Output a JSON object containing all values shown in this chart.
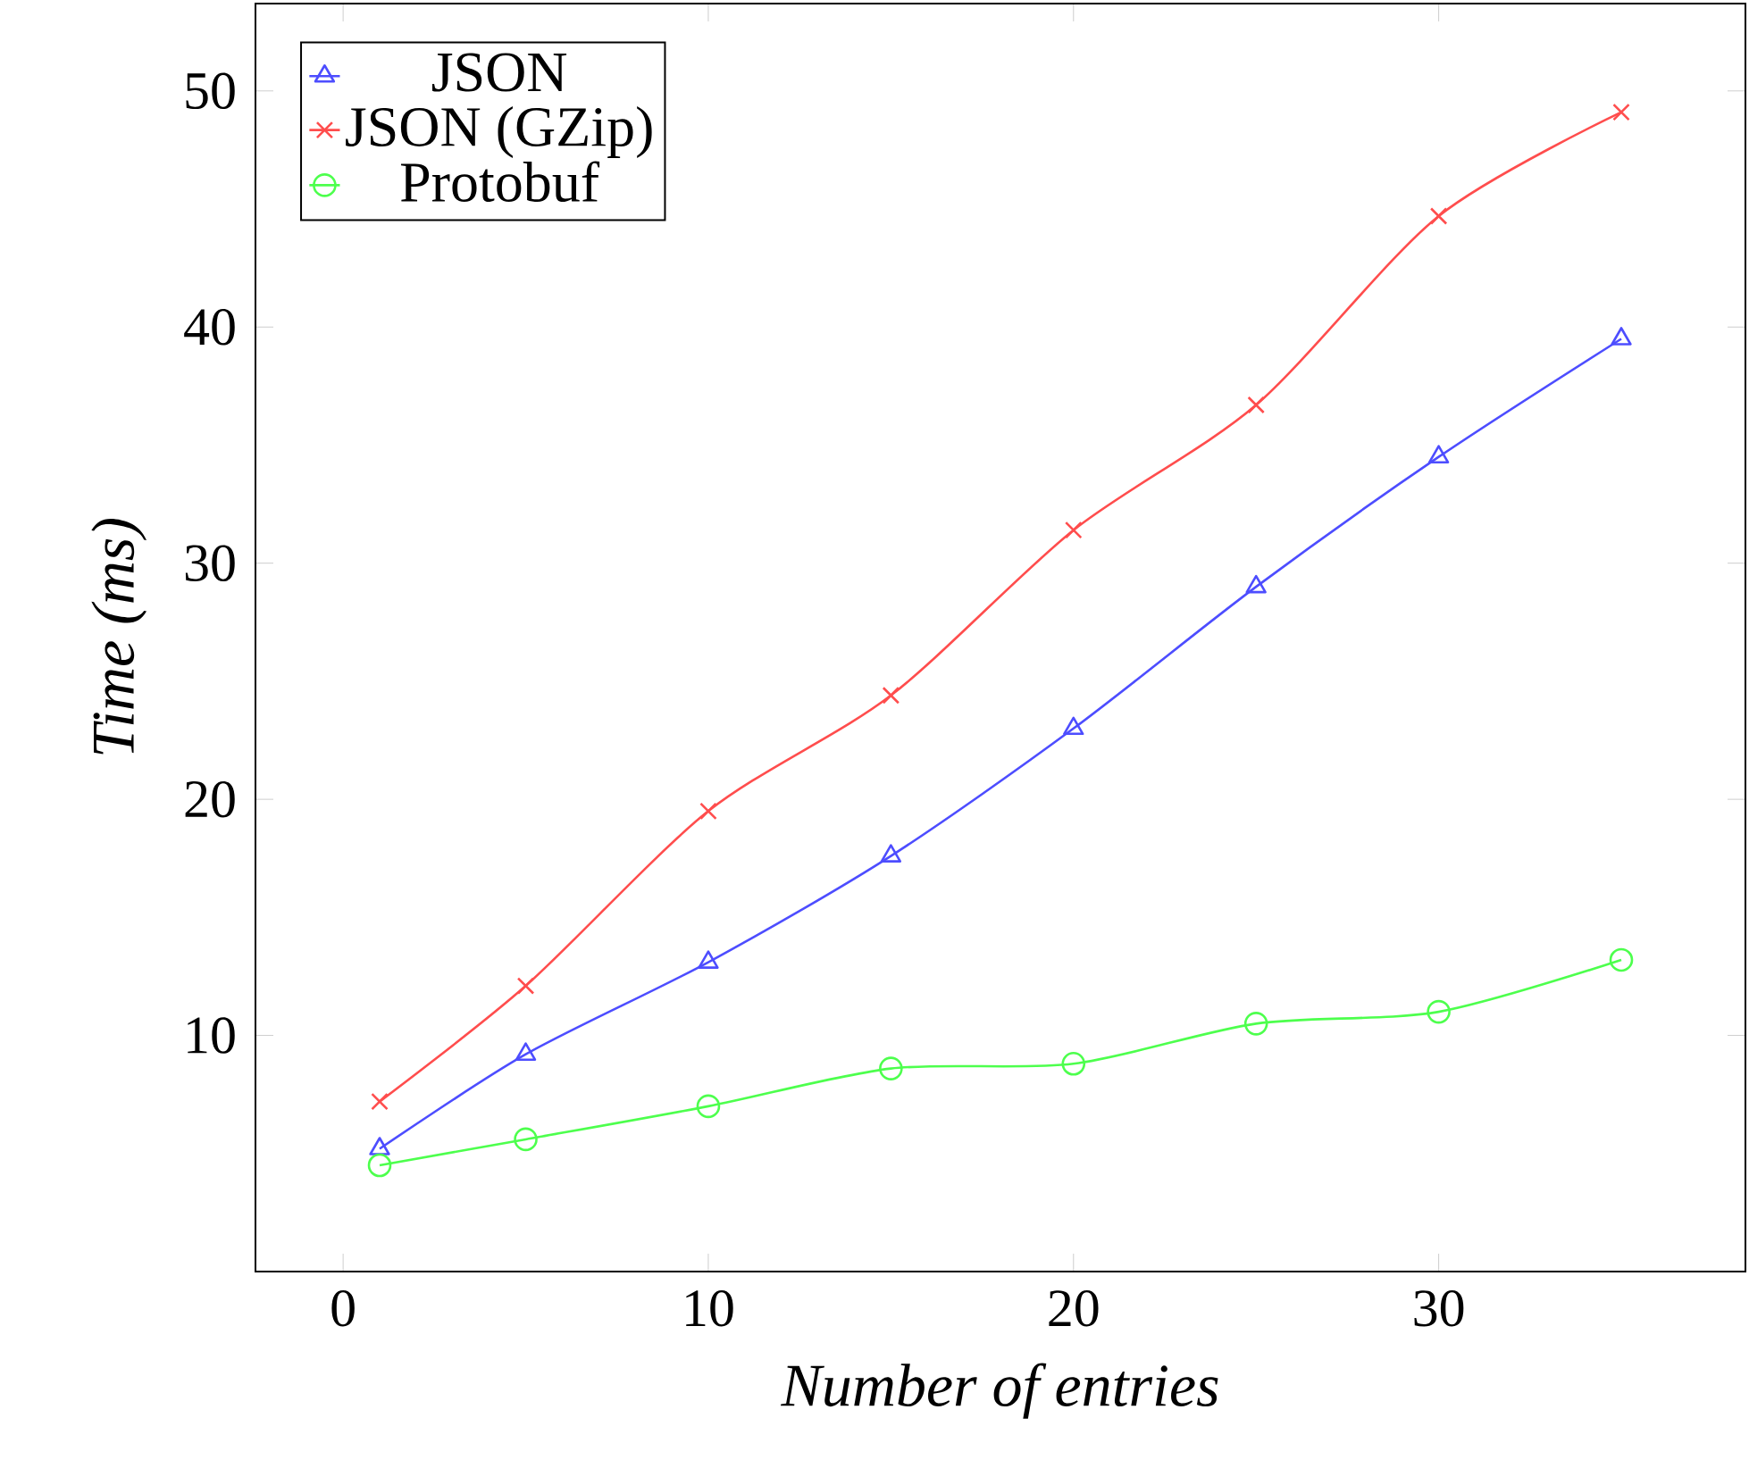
{
  "chart_data": {
    "type": "line",
    "xlabel": "*Number of entries*",
    "ylabel": "*Time (ms)*",
    "x": [
      1,
      5,
      10,
      15,
      20,
      25,
      30,
      35
    ],
    "series": [
      {
        "name": "JSON",
        "color": "#4d4dff",
        "marker": "triangle",
        "values": [
          5.2,
          9.2,
          13.1,
          17.6,
          23.0,
          29.0,
          34.5,
          39.5
        ]
      },
      {
        "name": "JSON (GZip)",
        "color": "#ff4d4d",
        "marker": "cross",
        "values": [
          7.2,
          12.1,
          19.5,
          24.4,
          31.4,
          36.7,
          44.7,
          49.1
        ]
      },
      {
        "name": "Protobuf",
        "color": "#4dff4d",
        "marker": "circle",
        "values": [
          4.5,
          5.6,
          7.0,
          8.6,
          8.8,
          10.5,
          11.0,
          13.2
        ]
      }
    ],
    "xlim": [
      -2.4,
      38.4
    ],
    "ylim": [
      0,
      53.7
    ],
    "xticks": [
      0,
      10,
      20,
      30
    ],
    "yticks": [
      10,
      20,
      30,
      40,
      50
    ],
    "legend": "top left",
    "grid": false
  }
}
